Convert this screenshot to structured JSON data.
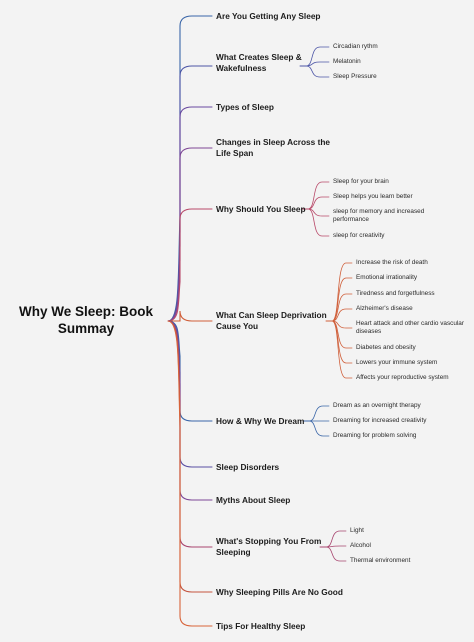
{
  "root_title": "Why We Sleep: Book Summay",
  "topics": [
    {
      "label": "Are You Getting Any Sleep",
      "color": "#3a66a8"
    },
    {
      "label": "What Creates Sleep & Wakefulness",
      "color": "#4c55a6",
      "children": [
        "Circadian rythm",
        "Melatonin",
        "Sleep Pressure"
      ]
    },
    {
      "label": "Types of Sleep",
      "color": "#6a4aa0"
    },
    {
      "label": "Changes in Sleep Across the Life Span",
      "color": "#7f4795"
    },
    {
      "label": "Why Should You Sleep",
      "color": "#b94a6a",
      "children": [
        "Sleep for your brain",
        "Sleep helps you learn better",
        "sleep for memory and increased performance",
        "sleep for creativity"
      ]
    },
    {
      "label": "What Can Sleep Deprivation Cause You",
      "color": "#d05f3a",
      "children": [
        "Increase the risk of death",
        "Emotional irrationality",
        "Tiredness and forgetfulness",
        "Alzheimer's disease",
        "Heart attack and other cardio vascular diseases",
        "Diabetes and obesity",
        "Lowers your immune system",
        "Affects your reproductive system"
      ]
    },
    {
      "label": "How & Why We Dream",
      "color": "#3a66a8",
      "children": [
        "Dream as an overnight therapy",
        "Dreaming for increased creativity",
        "Dreaming for problem solving"
      ]
    },
    {
      "label": "Sleep Disorders",
      "color": "#5a4fa3"
    },
    {
      "label": "Myths About Sleep",
      "color": "#7d4797"
    },
    {
      "label": "What's Stopping You From Sleeping",
      "color": "#a8456f",
      "children": [
        "Light",
        "Alcohol",
        "Thermal environment"
      ]
    },
    {
      "label": "Why Sleeping Pills Are No Good",
      "color": "#c4553f"
    },
    {
      "label": "Tips For Healthy Sleep",
      "color": "#d8643a"
    }
  ]
}
